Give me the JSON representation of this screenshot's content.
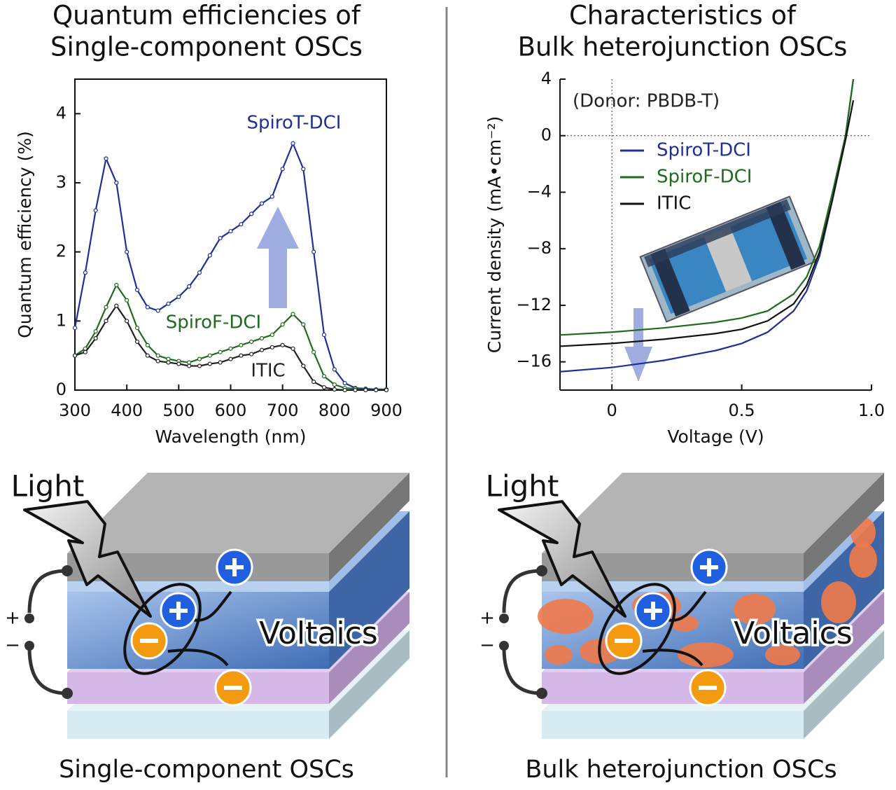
{
  "headers": [
    {
      "lines": [
        "Quantum efficiencies of",
        "Single-component OSCs"
      ]
    },
    {
      "lines": [
        "Characteristics of",
        "Bulk heterojunction OSCs"
      ]
    }
  ],
  "chart_data": [
    {
      "type": "line",
      "xlabel": "Wavelength (nm)",
      "ylabel": "Quantum efficiency (%)",
      "frame": true,
      "x": [
        300,
        320,
        340,
        360,
        380,
        400,
        420,
        440,
        460,
        480,
        500,
        520,
        540,
        560,
        580,
        600,
        620,
        640,
        660,
        680,
        700,
        720,
        740,
        760,
        780,
        800,
        820,
        840,
        860,
        880,
        900
      ],
      "xlim": [
        300,
        900
      ],
      "xticks": [
        300,
        400,
        500,
        600,
        700,
        800,
        900
      ],
      "ylim": [
        0,
        4.5
      ],
      "yticks": [
        0,
        1,
        2,
        3,
        4
      ],
      "series": [
        {
          "name": "SpiroT-DCI",
          "color": "#1f2f9a",
          "values": [
            0.9,
            1.7,
            2.6,
            3.35,
            3.0,
            2.0,
            1.45,
            1.2,
            1.15,
            1.25,
            1.35,
            1.5,
            1.7,
            1.95,
            2.2,
            2.3,
            2.4,
            2.55,
            2.7,
            2.8,
            3.2,
            3.57,
            3.2,
            2.0,
            0.8,
            0.3,
            0.1,
            0.03,
            0.02,
            0.01,
            0.01
          ]
        },
        {
          "name": "SpiroF-DCI",
          "color": "#1e6b1e",
          "values": [
            0.5,
            0.6,
            0.85,
            1.2,
            1.52,
            1.3,
            0.9,
            0.65,
            0.5,
            0.45,
            0.42,
            0.4,
            0.45,
            0.5,
            0.55,
            0.6,
            0.65,
            0.7,
            0.75,
            0.8,
            0.95,
            1.1,
            0.95,
            0.55,
            0.2,
            0.08,
            0.03,
            0.02,
            0.01,
            0.01,
            0.01
          ]
        },
        {
          "name": "ITIC",
          "color": "#222222",
          "values": [
            0.5,
            0.55,
            0.75,
            1.0,
            1.22,
            1.0,
            0.7,
            0.5,
            0.42,
            0.4,
            0.38,
            0.35,
            0.35,
            0.38,
            0.4,
            0.45,
            0.5,
            0.52,
            0.58,
            0.62,
            0.65,
            0.6,
            0.35,
            0.12,
            0.04,
            0.01,
            0,
            0,
            0,
            0,
            0
          ]
        }
      ],
      "annotations": [
        {
          "text": "SpiroT-DCI",
          "color": "#1f2f9a"
        },
        {
          "text": "SpiroF-DCI",
          "color": "#1e6b1e"
        },
        {
          "text": "ITIC",
          "color": "#222222"
        }
      ]
    },
    {
      "type": "line",
      "xlabel": "Voltage (V)",
      "ylabel": "Current density (mA•cm⁻²)",
      "frame": false,
      "zero_lines": true,
      "legend": true,
      "x": [
        -0.2,
        0,
        0.2,
        0.4,
        0.5,
        0.6,
        0.7,
        0.75,
        0.8,
        0.85,
        0.9,
        0.93
      ],
      "xlim": [
        -0.2,
        1.0
      ],
      "xticks": [
        0,
        0.5,
        {
          "value": 1,
          "label": "1.0"
        }
      ],
      "ylim": [
        -18,
        4
      ],
      "yticks": [
        {
          "value": -16,
          "label": "−16"
        },
        {
          "value": -12,
          "label": "−12"
        },
        {
          "value": -8,
          "label": "−8"
        },
        {
          "value": -4,
          "label": "−4"
        },
        0,
        4
      ],
      "series": [
        {
          "name": "SpiroT-DCI",
          "color": "#1f2f9a",
          "values": [
            -16.7,
            -16.4,
            -15.9,
            -15.2,
            -14.7,
            -13.9,
            -12.4,
            -11,
            -8.5,
            -4.5,
            0,
            4
          ]
        },
        {
          "name": "SpiroF-DCI",
          "color": "#1e6b1e",
          "values": [
            -14.1,
            -13.9,
            -13.6,
            -13.2,
            -12.9,
            -12.4,
            -11.2,
            -10,
            -7.8,
            -4,
            0,
            4
          ]
        },
        {
          "name": "ITIC",
          "color": "#111111",
          "values": [
            -14.9,
            -14.7,
            -14.4,
            -14.0,
            -13.7,
            -13.1,
            -11.9,
            -10.6,
            -8.2,
            -4.5,
            -0.3,
            2.5
          ]
        }
      ],
      "annotations": [
        {
          "text": "(Donor: PBDB-T)",
          "color": "#222222"
        }
      ]
    }
  ],
  "diagrams": [
    {
      "light": "Light",
      "label": "Voltaics",
      "plus": "+",
      "minus": "−",
      "caption": "Single-component OSCs"
    },
    {
      "light": "Light",
      "label": "Voltaics",
      "plus": "+",
      "minus": "−",
      "caption": "Bulk heterojunction OSCs"
    }
  ]
}
